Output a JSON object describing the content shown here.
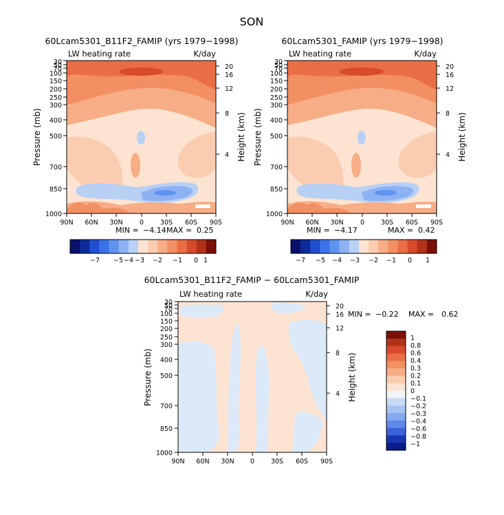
{
  "figure": {
    "season": "SON",
    "diff_title": "60Lcam5301_B11F2_FAMIP − 60Lcam5301_FAMIP"
  },
  "chart_data": [
    {
      "type": "heatmap",
      "title": "60Lcam5301_B11F2_FAMIP (yrs 1979−1998)",
      "field_label": "LW heating rate",
      "units": "K/day",
      "ylabel": "Pressure (mb)",
      "y2label": "Height (km)",
      "x_ticks": [
        "90N",
        "60N",
        "30N",
        "0",
        "30S",
        "60S",
        "90S"
      ],
      "xlim": [
        90,
        -90
      ],
      "y_ticks": [
        1000,
        850,
        700,
        500,
        400,
        300,
        250,
        200,
        150,
        100,
        70,
        50,
        30
      ],
      "ylim": [
        1000,
        30
      ],
      "y_scale": "log",
      "y2_ticks": [
        4,
        8,
        12,
        16,
        20
      ],
      "min_label": "MIN =",
      "min": "−4.14",
      "max_label": "MAX =",
      "max": "0.25",
      "colorbar_orientation": "horizontal",
      "colorbar_labels": [
        "−7",
        "−5",
        "−4",
        "−3",
        "−2",
        "−1",
        "0",
        "1"
      ]
    },
    {
      "type": "heatmap",
      "title": "60Lcam5301_FAMIP (yrs 1979−1998)",
      "field_label": "LW heating rate",
      "units": "K/day",
      "ylabel": "Pressure (mb)",
      "y2label": "Height (km)",
      "x_ticks": [
        "90N",
        "60N",
        "30N",
        "0",
        "30S",
        "60S",
        "90S"
      ],
      "xlim": [
        90,
        -90
      ],
      "y_ticks": [
        1000,
        850,
        700,
        500,
        400,
        300,
        250,
        200,
        150,
        100,
        70,
        50,
        30
      ],
      "ylim": [
        1000,
        30
      ],
      "y_scale": "log",
      "y2_ticks": [
        4,
        8,
        12,
        16,
        20
      ],
      "min_label": "MIN =",
      "min": "−4.17",
      "max_label": "MAX =",
      "max": "0.42",
      "colorbar_orientation": "horizontal",
      "colorbar_labels": [
        "−7",
        "−5",
        "−4",
        "−3",
        "−2",
        "−1",
        "0",
        "1"
      ]
    },
    {
      "type": "heatmap",
      "title": "60Lcam5301_B11F2_FAMIP − 60Lcam5301_FAMIP",
      "field_label": "LW heating rate",
      "units": "K/day",
      "ylabel": "Pressure (mb)",
      "y2label": "Height (km)",
      "x_ticks": [
        "90N",
        "60N",
        "30N",
        "0",
        "30S",
        "60S",
        "90S"
      ],
      "xlim": [
        90,
        -90
      ],
      "y_ticks": [
        1000,
        850,
        700,
        500,
        400,
        300,
        250,
        200,
        150,
        100,
        70,
        50,
        30
      ],
      "ylim": [
        1000,
        30
      ],
      "y_scale": "log",
      "y2_ticks": [
        4,
        8,
        12,
        16,
        20
      ],
      "min_label": "MIN =",
      "min": "−0.22",
      "max_label": "MAX =",
      "max": "0.62",
      "colorbar_orientation": "vertical",
      "colorbar_labels": [
        "1",
        "0.8",
        "0.6",
        "0.4",
        "0.3",
        "0.2",
        "0.1",
        "0",
        "−0.1",
        "−0.2",
        "−0.3",
        "−0.4",
        "−0.6",
        "−0.8",
        "−1"
      ]
    }
  ],
  "colors": {
    "heating_scale": [
      "#08106e",
      "#0c2a9a",
      "#1f4fd0",
      "#3a73e8",
      "#5f93ef",
      "#8cb2f3",
      "#b9d0f5",
      "#fde4d2",
      "#fbcdb0",
      "#f7ad86",
      "#f28f63",
      "#ea6e45",
      "#d84a2c",
      "#b23219",
      "#7a1008"
    ],
    "diff_scale": [
      "#7a1008",
      "#b23219",
      "#d84a2c",
      "#ea6e45",
      "#f28f63",
      "#f7ad86",
      "#fbcdb0",
      "#fde4d2",
      "#f2f4f6",
      "#c6dcf5",
      "#a6c4f2",
      "#85a8ef",
      "#5f89ea",
      "#3b62d6",
      "#1836b2",
      "#0a1c8a"
    ]
  }
}
